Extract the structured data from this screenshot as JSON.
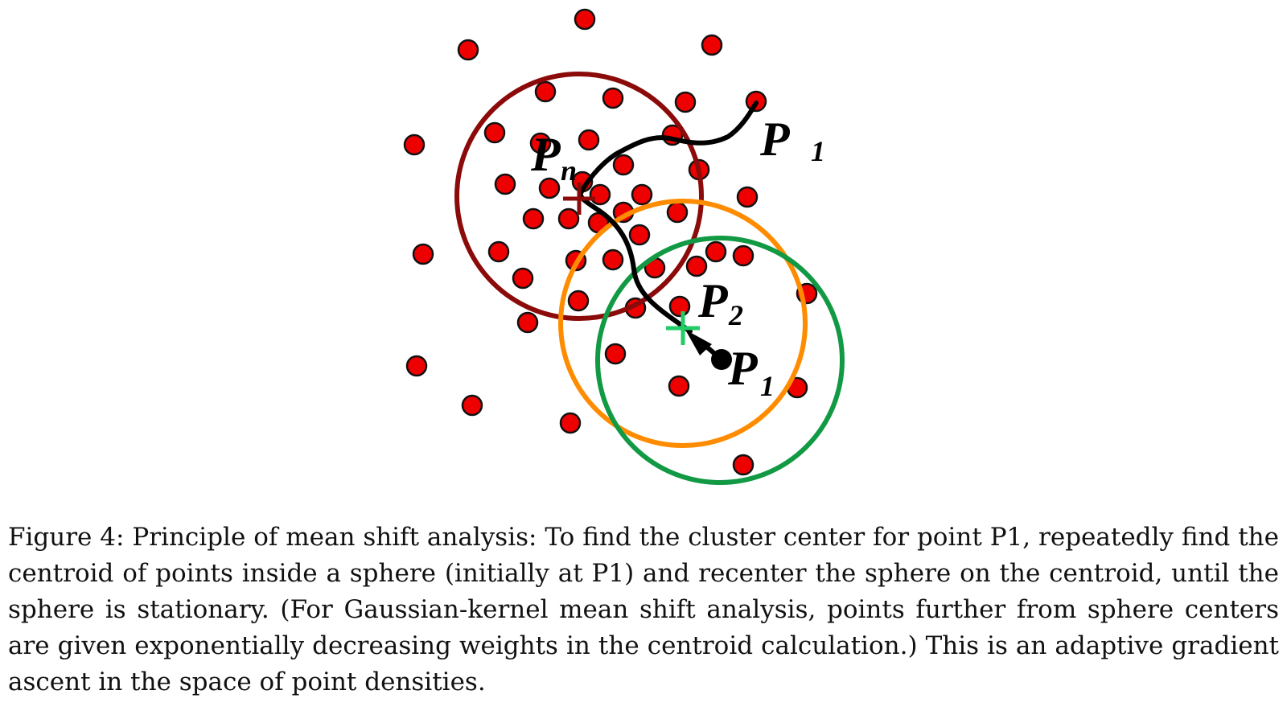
{
  "figure": {
    "labels": {
      "p1_far": {
        "main": "P",
        "sub": "1"
      },
      "pn": {
        "main": "P",
        "sub": "n"
      },
      "p2": {
        "main": "P",
        "sub": "2"
      },
      "p1": {
        "main": "P",
        "sub": "1"
      }
    },
    "colors": {
      "point_fill": "#ee0000",
      "point_stroke": "#111111",
      "sphere_initial": "#119944",
      "sphere_second": "#ff8c00",
      "sphere_final": "#8b0a0a",
      "path": "#000000",
      "centroid_p2_marker": "#22cc66",
      "centroid_pn_marker": "#8b0a0a"
    }
  },
  "caption": {
    "text": "Figure 4: Principle of mean shift analysis: To find the cluster center for point P1, repeatedly find the centroid of points inside a sphere (initially at P1) and recenter the sphere on the centroid, until the sphere is stationary. (For Gaussian-kernel mean shift analysis, points further from sphere centers are given exponentially decreasing weights in the centroid calculation.) This is an adaptive gradient ascent in the space of point densities."
  }
}
